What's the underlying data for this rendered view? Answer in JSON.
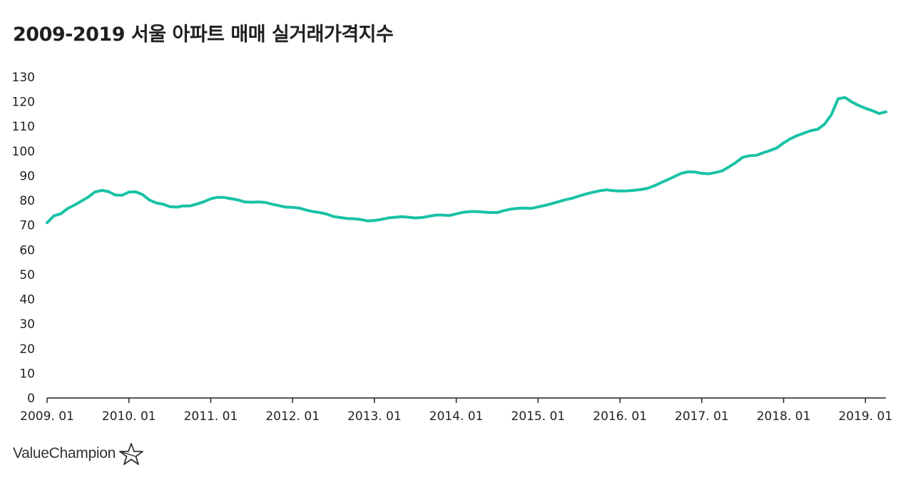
{
  "chart_data": {
    "type": "line",
    "title": "2009-2019 서울 아파트 매매 실거래가격지수",
    "xlabel": "",
    "ylabel": "",
    "ylim": [
      0,
      130
    ],
    "yticks": [
      0,
      10,
      20,
      30,
      40,
      50,
      60,
      70,
      80,
      90,
      100,
      110,
      120,
      130
    ],
    "xtick_labels": [
      "2009. 01",
      "2010. 01",
      "2011. 01",
      "2012. 01",
      "2013. 01",
      "2014. 01",
      "2015. 01",
      "2016. 01",
      "2017. 01",
      "2018. 01",
      "2019. 01"
    ],
    "x_start": "2009-01",
    "x_end": "2019-03",
    "color": "#19c2a6",
    "series": [
      {
        "name": "서울 아파트 매매 실거래가격지수",
        "values": [
          71.0,
          73.8,
          74.6,
          76.7,
          78.1,
          79.7,
          81.3,
          83.4,
          84.1,
          83.6,
          82.2,
          82.1,
          83.4,
          83.5,
          82.4,
          80.2,
          79.0,
          78.5,
          77.5,
          77.3,
          77.8,
          77.8,
          78.6,
          79.5,
          80.7,
          81.3,
          81.2,
          80.7,
          80.2,
          79.4,
          79.3,
          79.4,
          79.2,
          78.5,
          77.9,
          77.3,
          77.2,
          76.9,
          76.1,
          75.5,
          75.1,
          74.5,
          73.5,
          73.1,
          72.7,
          72.6,
          72.3,
          71.7,
          71.9,
          72.3,
          72.9,
          73.2,
          73.4,
          73.2,
          72.9,
          73.1,
          73.6,
          74.1,
          74.1,
          73.9,
          74.6,
          75.2,
          75.5,
          75.5,
          75.3,
          75.1,
          75.1,
          75.9,
          76.5,
          76.8,
          76.9,
          76.8,
          77.4,
          78.0,
          78.7,
          79.5,
          80.3,
          80.9,
          81.8,
          82.6,
          83.3,
          83.9,
          84.3,
          84.0,
          83.8,
          83.9,
          84.1,
          84.4,
          84.9,
          85.9,
          87.2,
          88.4,
          89.7,
          91.0,
          91.6,
          91.5,
          91.0,
          90.8,
          91.3,
          92.0,
          93.6,
          95.4,
          97.5,
          98.1,
          98.3,
          99.3,
          100.2,
          101.3,
          103.3,
          105.0,
          106.3,
          107.3,
          108.3,
          108.8,
          110.9,
          114.7,
          121.2,
          121.7,
          119.9,
          118.5,
          117.3,
          116.4,
          115.2,
          115.9
        ]
      }
    ]
  },
  "brand": {
    "name": "ValueChampion"
  }
}
